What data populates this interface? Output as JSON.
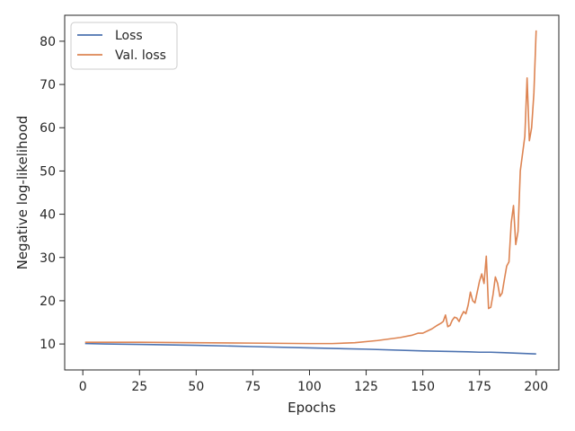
{
  "chart_data": {
    "type": "line",
    "title": "",
    "xlabel": "Epochs",
    "ylabel": "Negative log-likelihood",
    "xlim": [
      -8,
      210
    ],
    "ylim": [
      4,
      86
    ],
    "xticks": [
      0,
      25,
      50,
      75,
      100,
      125,
      150,
      175,
      200
    ],
    "yticks": [
      10,
      20,
      30,
      40,
      50,
      60,
      70,
      80
    ],
    "grid": false,
    "legend_position": "top-left",
    "series": [
      {
        "name": "Loss",
        "color": "#4c72b0",
        "x": [
          1,
          10,
          25,
          50,
          75,
          100,
          125,
          150,
          160,
          170,
          175,
          178,
          180,
          185,
          190,
          195,
          200
        ],
        "y": [
          10.1,
          10.0,
          9.9,
          9.7,
          9.4,
          9.1,
          8.8,
          8.4,
          8.3,
          8.2,
          8.1,
          8.1,
          8.1,
          8.0,
          7.9,
          7.8,
          7.7
        ]
      },
      {
        "name": "Val. loss",
        "color": "#dd8452",
        "x": [
          1,
          25,
          50,
          75,
          100,
          110,
          120,
          130,
          140,
          145,
          148,
          150,
          152,
          154,
          156,
          158,
          159,
          160,
          161,
          162,
          163,
          164,
          165,
          166,
          167,
          168,
          169,
          170,
          171,
          172,
          173,
          174,
          175,
          176,
          177,
          178,
          179,
          180,
          181,
          182,
          183,
          184,
          185,
          186,
          187,
          188,
          189,
          190,
          191,
          192,
          193,
          194,
          195,
          196,
          197,
          198,
          199,
          200
        ],
        "y": [
          10.4,
          10.4,
          10.3,
          10.2,
          10.1,
          10.1,
          10.3,
          10.8,
          11.5,
          12.0,
          12.5,
          12.5,
          13.0,
          13.5,
          14.2,
          14.8,
          15.2,
          16.7,
          14.0,
          14.3,
          15.5,
          16.2,
          16.0,
          15.2,
          16.5,
          17.5,
          17.0,
          19.0,
          22.0,
          20.0,
          19.5,
          22.0,
          24.5,
          26.2,
          24.0,
          30.3,
          18.2,
          18.5,
          21.5,
          25.5,
          24.0,
          21.0,
          21.8,
          25.0,
          28.0,
          29.0,
          38.0,
          42.0,
          33.0,
          36.0,
          50.0,
          54.0,
          58.0,
          71.5,
          57.0,
          60.0,
          68.0,
          82.5
        ]
      }
    ]
  }
}
